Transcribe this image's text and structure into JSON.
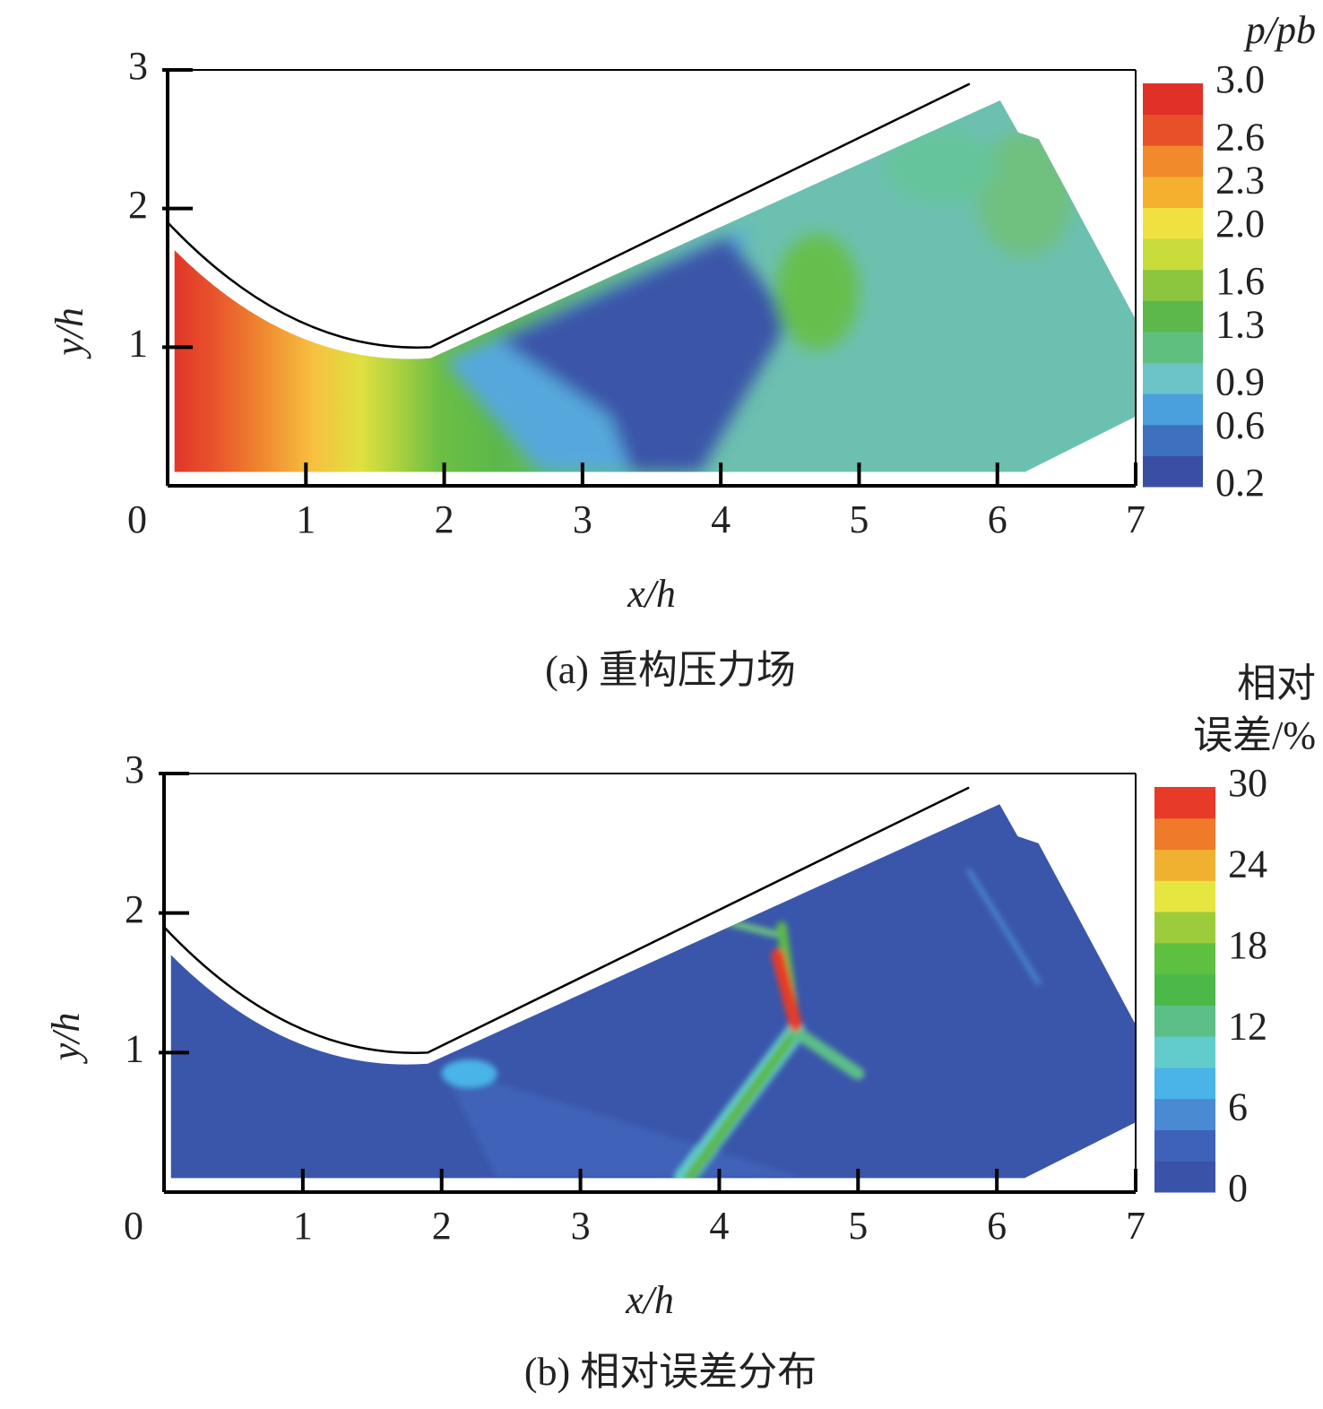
{
  "chart_data": [
    {
      "type": "contour",
      "caption": "(a) 重构压力场",
      "xlabel": "x/h",
      "ylabel": "y/h",
      "xlim": [
        0,
        7
      ],
      "ylim": [
        0,
        3
      ],
      "xticks": [
        0,
        1,
        2,
        3,
        4,
        5,
        6,
        7
      ],
      "yticks": [
        1,
        2,
        3
      ],
      "colorbar_label": [
        "p/pb"
      ],
      "colorbar_lim": [
        0.2,
        3.0
      ],
      "colorbar_ticks": [
        {
          "value": 3,
          "label": "3.0"
        },
        2.6,
        2.3,
        {
          "value": 2,
          "label": "2.0"
        },
        1.6,
        1.3,
        0.9,
        0.6,
        0.2
      ],
      "colorbar_colors": [
        "#3a4fa3",
        "#3f6fbf",
        "#4aa0dc",
        "#6cc3c8",
        "#5fbf7f",
        "#5cb84a",
        "#8cc63f",
        "#c8dc3c",
        "#f0e040",
        "#f5b030",
        "#f08a2a",
        "#e8502a",
        "#e03028"
      ]
    },
    {
      "type": "contour",
      "caption": "(b) 相对误差分布",
      "xlabel": "x/h",
      "ylabel": "y/h",
      "xlim": [
        0,
        7
      ],
      "ylim": [
        0,
        3
      ],
      "xticks": [
        0,
        1,
        2,
        3,
        4,
        5,
        6,
        7
      ],
      "yticks": [
        1,
        2,
        3
      ],
      "colorbar_label": [
        "相对",
        "误差/%"
      ],
      "colorbar_lim": [
        0,
        30
      ],
      "colorbar_ticks": [
        30,
        24,
        18,
        12,
        6,
        0
      ],
      "colorbar_colors": [
        "#3a52a8",
        "#3d62b8",
        "#4a8ad2",
        "#4ab4e8",
        "#62cccc",
        "#5cbf88",
        "#4cb848",
        "#5ec040",
        "#9ccc3c",
        "#e6e640",
        "#f0b030",
        "#ee7a2a",
        "#e83a28"
      ]
    }
  ]
}
